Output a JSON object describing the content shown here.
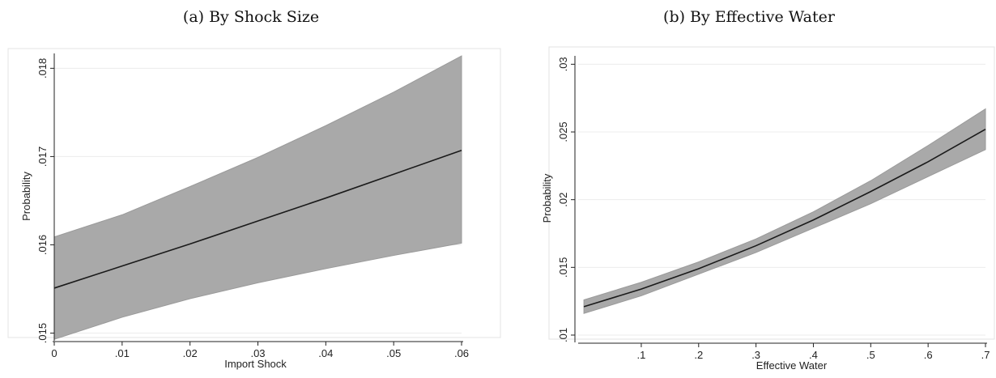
{
  "chart_data": [
    {
      "type": "line",
      "title": "(a) By Shock Size",
      "xlabel": "Import Shock",
      "ylabel": "Probability",
      "xlim": [
        0,
        0.06
      ],
      "ylim": [
        0.01495,
        0.01815
      ],
      "xticks": [
        0,
        0.01,
        0.02,
        0.03,
        0.04,
        0.05,
        0.06
      ],
      "xtick_labels": [
        "0",
        ".01",
        ".02",
        ".03",
        ".04",
        ".05",
        ".06"
      ],
      "yticks": [
        0.015,
        0.016,
        0.017,
        0.018
      ],
      "ytick_labels": [
        ".015",
        ".016",
        ".017",
        ".018"
      ],
      "ytick_rotation": "vertical",
      "grid": true,
      "band_color": "#a9a9a9",
      "line_color": "#1a1a1a",
      "series": [
        {
          "type": "confidence-band-with-line",
          "x": [
            0,
            0.01,
            0.02,
            0.03,
            0.04,
            0.05,
            0.06
          ],
          "y": [
            0.01551,
            0.01576,
            0.01601,
            0.01627,
            0.01653,
            0.0168,
            0.01707
          ],
          "lower": [
            0.01493,
            0.01518,
            0.01539,
            0.01557,
            0.01573,
            0.01588,
            0.01602
          ],
          "upper": [
            0.01609,
            0.01634,
            0.01666,
            0.01699,
            0.01735,
            0.01773,
            0.01814
          ]
        }
      ]
    },
    {
      "type": "line",
      "title": "(b) By Effective Water",
      "xlabel": "Effective Water",
      "ylabel": "Probability",
      "xlim": [
        -0.01,
        0.7
      ],
      "ylim": [
        0.0097,
        0.0305
      ],
      "xticks": [
        0.1,
        0.2,
        0.3,
        0.4,
        0.5,
        0.6,
        0.7
      ],
      "xtick_labels": [
        ".1",
        ".2",
        ".3",
        ".4",
        ".5",
        ".6",
        ".7"
      ],
      "yticks": [
        0.01,
        0.015,
        0.02,
        0.025,
        0.03
      ],
      "ytick_labels": [
        ".01",
        ".015",
        ".02",
        ".025",
        ".03"
      ],
      "ytick_rotation": "vertical",
      "grid": true,
      "band_color": "#a9a9a9",
      "line_color": "#1a1a1a",
      "series": [
        {
          "type": "confidence-band-with-line",
          "x": [
            0,
            0.1,
            0.2,
            0.3,
            0.4,
            0.5,
            0.6,
            0.7
          ],
          "y": [
            0.0121,
            0.0134,
            0.0149,
            0.0166,
            0.0185,
            0.0206,
            0.0228,
            0.0252
          ],
          "lower": [
            0.0116,
            0.0129,
            0.0145,
            0.0161,
            0.0179,
            0.0197,
            0.0217,
            0.0237
          ],
          "upper": [
            0.0126,
            0.0139,
            0.0154,
            0.0171,
            0.0191,
            0.0214,
            0.024,
            0.0267
          ]
        }
      ]
    }
  ]
}
